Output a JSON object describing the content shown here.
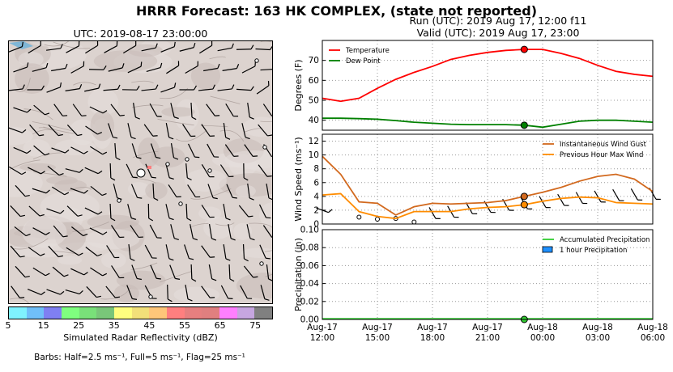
{
  "page": {
    "title": "HRRR Forecast: 163 HK COMPLEX, (state not reported)",
    "run_line": "Run (UTC): 2019 Aug 17, 12:00 f11",
    "valid_line": "Valid (UTC): 2019 Aug 17, 23:00"
  },
  "map": {
    "title": "UTC: 2019-08-17 23:00:00",
    "colorbar_label": "Simulated Radar Reflectivity (dBZ)",
    "colorbar_ticks": [
      "5",
      "15",
      "25",
      "35",
      "45",
      "55",
      "65",
      "75"
    ],
    "colorbar_colors": [
      "#7ff2ff",
      "#70bff9",
      "#7f7ff2",
      "#7fff7f",
      "#79e079",
      "#79c679",
      "#ffff7f",
      "#f2e079",
      "#ffc679",
      "#ff7f7f",
      "#e67f7f",
      "#e07f7f",
      "#ff7fff",
      "#c6a6e0",
      "#808080"
    ],
    "barbs_note": "Barbs: Half=2.5 ms⁻¹, Full=5 ms⁻¹, Flag=25 ms⁻¹"
  },
  "chart_data": [
    {
      "type": "line",
      "ylabel": "Degrees (F)",
      "ylim": [
        35,
        80
      ],
      "yticks": [
        40,
        50,
        60,
        70
      ],
      "grid": true,
      "legend": "top-left",
      "x_hours_utc": [
        12,
        13,
        14,
        15,
        16,
        17,
        18,
        19,
        20,
        21,
        22,
        23,
        24,
        25,
        26,
        27,
        28,
        29,
        30
      ],
      "series": [
        {
          "name": "Temperature",
          "color": "#ff0000",
          "values": [
            51,
            49.5,
            51,
            56,
            60.5,
            64,
            67,
            70.5,
            72.5,
            74,
            75,
            75.5,
            75.5,
            73.5,
            71,
            67.5,
            64.5,
            63,
            62
          ]
        },
        {
          "name": "Dew Point",
          "color": "#008000",
          "values": [
            41,
            41,
            40.8,
            40.5,
            39.8,
            39,
            38.5,
            38,
            37.8,
            37.8,
            37.8,
            37.5,
            36.5,
            38,
            39.5,
            40,
            40,
            39.5,
            39
          ]
        }
      ],
      "highlight": {
        "x": 23,
        "temperature": 75.5,
        "dew_point": 37.5
      }
    },
    {
      "type": "line",
      "ylabel": "Wind Speed (ms⁻¹)",
      "ylim": [
        0,
        13
      ],
      "yticks": [
        0,
        2,
        4,
        6,
        8,
        10,
        12
      ],
      "grid": true,
      "legend": "top-right",
      "x_hours_utc": [
        12,
        13,
        14,
        15,
        16,
        17,
        18,
        19,
        20,
        21,
        22,
        23,
        24,
        25,
        26,
        27,
        28,
        29,
        30
      ],
      "series": [
        {
          "name": "Instantaneous Wind Gust",
          "color": "#d2691e",
          "values": [
            9.8,
            7.2,
            3.2,
            3.0,
            1.3,
            2.5,
            3.0,
            2.9,
            3.0,
            3.1,
            3.4,
            4.0,
            4.6,
            5.3,
            6.2,
            6.9,
            7.2,
            6.5,
            4.7
          ]
        },
        {
          "name": "Previous Hour Max Wind",
          "color": "#ff8c00",
          "values": [
            4.2,
            4.4,
            1.8,
            1.1,
            0.8,
            1.8,
            1.8,
            1.8,
            2.2,
            2.4,
            2.5,
            2.8,
            3.3,
            3.7,
            3.9,
            3.8,
            3.1,
            3.0,
            2.9
          ]
        }
      ],
      "barb_speed": [
        2.0,
        null,
        1.0,
        0.7,
        0.8,
        0.3,
        1.6,
        1.8,
        2.3,
        2.5,
        2.8,
        3.0,
        3.2,
        3.5,
        3.8,
        4.0,
        4.2,
        4.3,
        4.4
      ],
      "highlight": {
        "x": 23,
        "gust": 4.0,
        "max_wind": 2.8
      }
    },
    {
      "type": "bar",
      "ylabel": "Precipitation (in)",
      "ylim": [
        0,
        0.1
      ],
      "yticks": [
        "0.00",
        "0.02",
        "0.04",
        "0.06",
        "0.08",
        "0.10"
      ],
      "grid": true,
      "legend": "top-right",
      "x_hours_utc": [
        12,
        13,
        14,
        15,
        16,
        17,
        18,
        19,
        20,
        21,
        22,
        23,
        24,
        25,
        26,
        27,
        28,
        29,
        30
      ],
      "series": [
        {
          "name": "Accumulated Precipitation",
          "color": "#32cd32",
          "values": [
            0,
            0,
            0,
            0,
            0,
            0,
            0,
            0,
            0,
            0,
            0,
            0,
            0,
            0,
            0,
            0,
            0,
            0,
            0
          ]
        },
        {
          "name": "1 hour Precipitation",
          "color": "#1e90ff",
          "values": [
            0,
            0,
            0,
            0,
            0,
            0,
            0,
            0,
            0,
            0,
            0,
            0,
            0,
            0,
            0,
            0,
            0,
            0,
            0
          ]
        }
      ],
      "highlight": {
        "x": 23,
        "accumulated": 0
      }
    }
  ],
  "x_axis": {
    "xlim": [
      12,
      30
    ],
    "ticks": [
      {
        "h": 12,
        "line1": "Aug-17",
        "line2": "12:00"
      },
      {
        "h": 15,
        "line1": "Aug-17",
        "line2": "15:00"
      },
      {
        "h": 18,
        "line1": "Aug-17",
        "line2": "18:00"
      },
      {
        "h": 21,
        "line1": "Aug-17",
        "line2": "21:00"
      },
      {
        "h": 24,
        "line1": "Aug-18",
        "line2": "00:00"
      },
      {
        "h": 27,
        "line1": "Aug-18",
        "line2": "03:00"
      },
      {
        "h": 30,
        "line1": "Aug-18",
        "line2": "06:00"
      }
    ]
  }
}
